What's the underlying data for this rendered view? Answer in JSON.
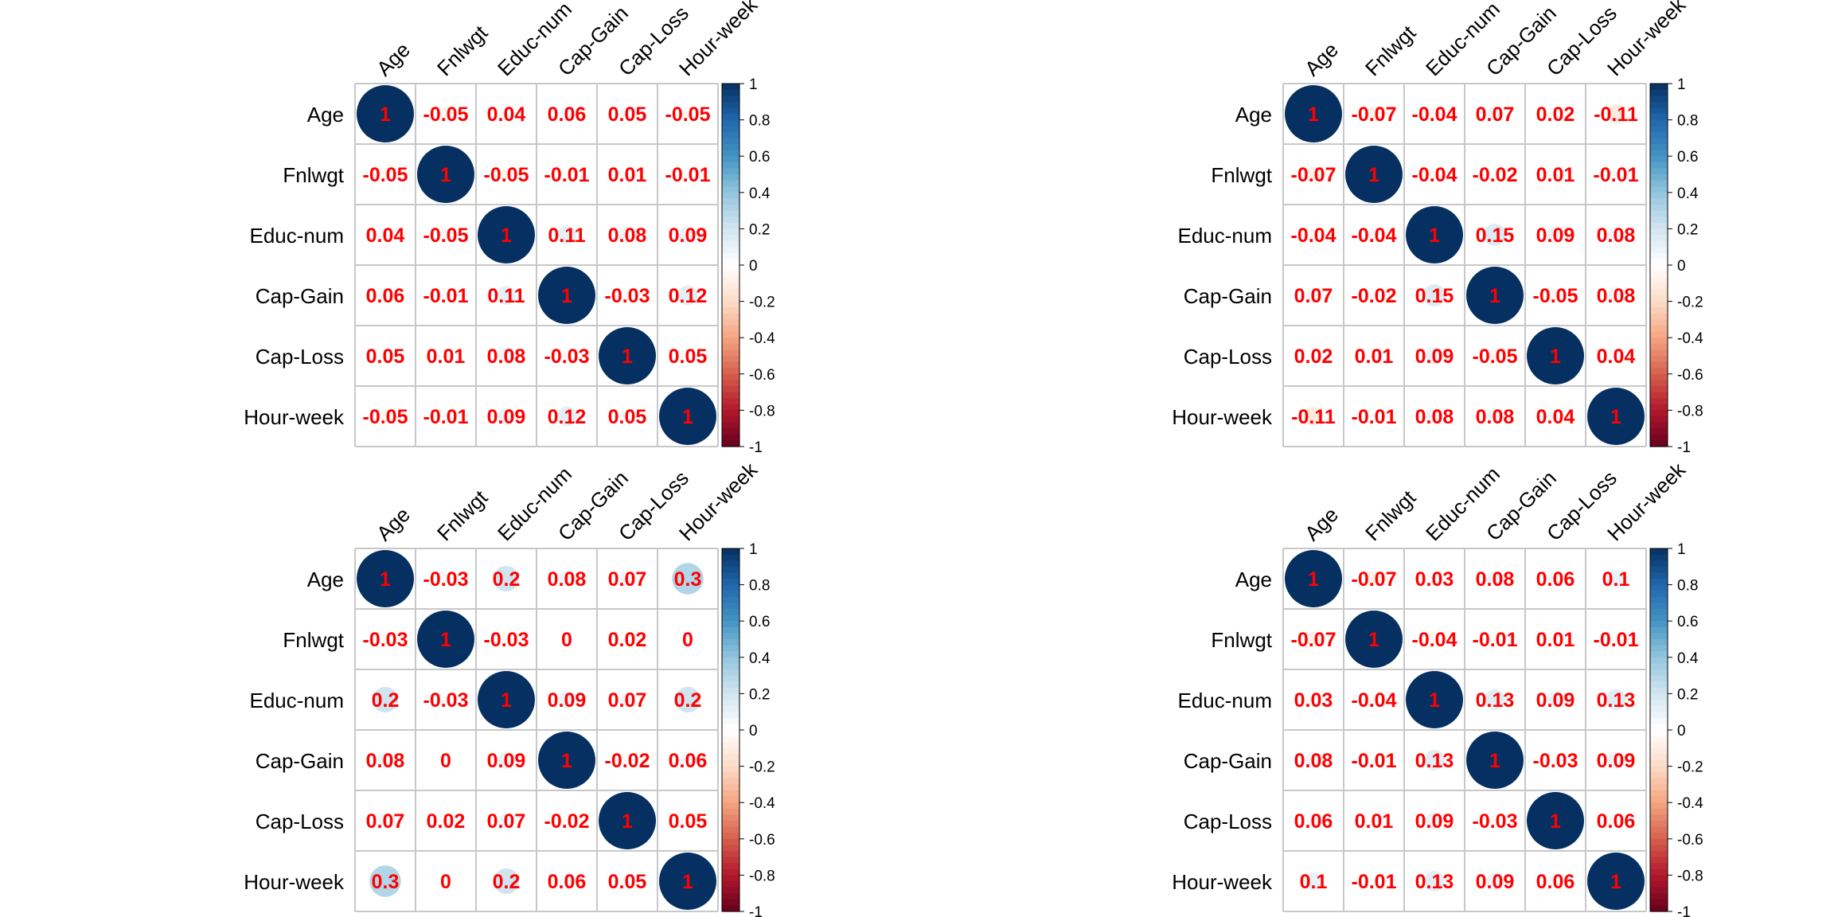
{
  "chart_data": [
    {
      "type": "heatmap",
      "style": "corrplot-circle",
      "variables": [
        "Age",
        "Fnlwgt",
        "Educ-num",
        "Cap-Gain",
        "Cap-Loss",
        "Hour-week"
      ],
      "values": [
        [
          1,
          -0.05,
          0.04,
          0.06,
          0.05,
          -0.05
        ],
        [
          -0.05,
          1,
          -0.05,
          -0.01,
          0.01,
          -0.01
        ],
        [
          0.04,
          -0.05,
          1,
          0.11,
          0.08,
          0.09
        ],
        [
          0.06,
          -0.01,
          0.11,
          1,
          -0.03,
          0.12
        ],
        [
          0.05,
          0.01,
          0.08,
          -0.03,
          1,
          0.05
        ],
        [
          -0.05,
          -0.01,
          0.09,
          0.12,
          0.05,
          1
        ]
      ],
      "colorbar": {
        "range": [
          -1,
          1
        ],
        "ticks": [
          "1",
          "0.8",
          "0.6",
          "0.4",
          "0.2",
          "0",
          "-0.2",
          "-0.4",
          "-0.6",
          "-0.8",
          "-1"
        ]
      }
    },
    {
      "type": "heatmap",
      "style": "corrplot-circle",
      "variables": [
        "Age",
        "Fnlwgt",
        "Educ-num",
        "Cap-Gain",
        "Cap-Loss",
        "Hour-week"
      ],
      "values": [
        [
          1,
          -0.07,
          -0.04,
          0.07,
          0.02,
          -0.11
        ],
        [
          -0.07,
          1,
          -0.04,
          -0.02,
          0.01,
          -0.01
        ],
        [
          -0.04,
          -0.04,
          1,
          0.15,
          0.09,
          0.08
        ],
        [
          0.07,
          -0.02,
          0.15,
          1,
          -0.05,
          0.08
        ],
        [
          0.02,
          0.01,
          0.09,
          -0.05,
          1,
          0.04
        ],
        [
          -0.11,
          -0.01,
          0.08,
          0.08,
          0.04,
          1
        ]
      ],
      "colorbar": {
        "range": [
          -1,
          1
        ],
        "ticks": [
          "1",
          "0.8",
          "0.6",
          "0.4",
          "0.2",
          "0",
          "-0.2",
          "-0.4",
          "-0.6",
          "-0.8",
          "-1"
        ]
      }
    },
    {
      "type": "heatmap",
      "style": "corrplot-circle",
      "variables": [
        "Age",
        "Fnlwgt",
        "Educ-num",
        "Cap-Gain",
        "Cap-Loss",
        "Hour-week"
      ],
      "values": [
        [
          1,
          -0.03,
          0.2,
          0.08,
          0.07,
          0.3
        ],
        [
          -0.03,
          1,
          -0.03,
          0,
          0.02,
          0
        ],
        [
          0.2,
          -0.03,
          1,
          0.09,
          0.07,
          0.2
        ],
        [
          0.08,
          0,
          0.09,
          1,
          -0.02,
          0.06
        ],
        [
          0.07,
          0.02,
          0.07,
          -0.02,
          1,
          0.05
        ],
        [
          0.3,
          0,
          0.2,
          0.06,
          0.05,
          1
        ]
      ],
      "colorbar": {
        "range": [
          -1,
          1
        ],
        "ticks": [
          "1",
          "0.8",
          "0.6",
          "0.4",
          "0.2",
          "0",
          "-0.2",
          "-0.4",
          "-0.6",
          "-0.8",
          "-1"
        ]
      }
    },
    {
      "type": "heatmap",
      "style": "corrplot-circle",
      "variables": [
        "Age",
        "Fnlwgt",
        "Educ-num",
        "Cap-Gain",
        "Cap-Loss",
        "Hour-week"
      ],
      "values": [
        [
          1,
          -0.07,
          0.03,
          0.08,
          0.06,
          0.1
        ],
        [
          -0.07,
          1,
          -0.04,
          -0.01,
          0.01,
          -0.01
        ],
        [
          0.03,
          -0.04,
          1,
          0.13,
          0.09,
          0.13
        ],
        [
          0.08,
          -0.01,
          0.13,
          1,
          -0.03,
          0.09
        ],
        [
          0.06,
          0.01,
          0.09,
          -0.03,
          1,
          0.06
        ],
        [
          0.1,
          -0.01,
          0.13,
          0.09,
          0.06,
          1
        ]
      ],
      "colorbar": {
        "range": [
          -1,
          1
        ],
        "ticks": [
          "1",
          "0.8",
          "0.6",
          "0.4",
          "0.2",
          "0",
          "-0.2",
          "-0.4",
          "-0.6",
          "-0.8",
          "-1"
        ]
      }
    }
  ],
  "colors": {
    "positive_strong": "#053061",
    "positive_mid": "#4393c3",
    "neutral": "#ffffff",
    "negative_mid": "#d6604d",
    "negative_strong": "#67001f",
    "value_text": "#ff0000",
    "grid": "#c8c8c8"
  }
}
